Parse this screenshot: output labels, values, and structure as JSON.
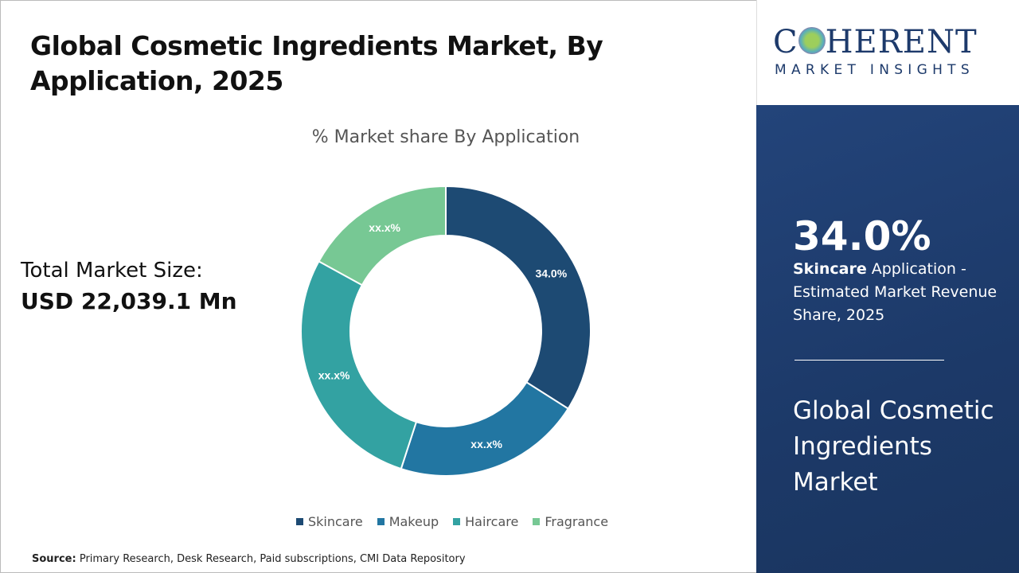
{
  "title": "Global Cosmetic Ingredients Market, By Application, 2025",
  "total_market": {
    "label": "Total Market Size:",
    "value": "USD 22,039.1 Mn"
  },
  "source": {
    "label": "Source:",
    "text": "Primary Research, Desk Research, Paid subscriptions, CMI Data Repository"
  },
  "logo": {
    "word": "COHERENT",
    "tagline": "MARKET INSIGHTS"
  },
  "highlight": {
    "percent": "34.0%",
    "segment": "Skincare",
    "text": "Application - Estimated Market Revenue Share, 2025",
    "market_name": "Global Cosmetic Ingredients Market"
  },
  "chart_data": {
    "type": "pie",
    "donut": true,
    "title": "% Market share By Application",
    "categories": [
      "Skincare",
      "Makeup",
      "Haircare",
      "Fragrance"
    ],
    "values": [
      34.0,
      21,
      28,
      17
    ],
    "data_labels": [
      "34.0%",
      "xx.x%",
      "xx.x%",
      "xx.x%"
    ],
    "colors": [
      "#1d4a73",
      "#2276a2",
      "#33a2a2",
      "#77c894"
    ],
    "legend": "bottom"
  }
}
